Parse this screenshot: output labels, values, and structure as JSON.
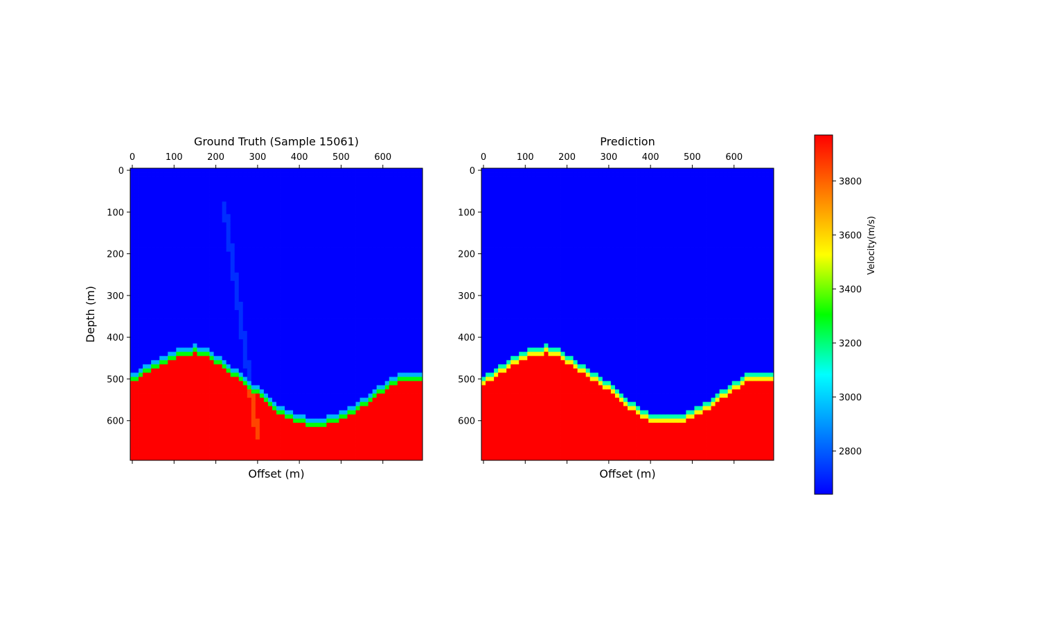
{
  "chart_data": [
    {
      "type": "heatmap",
      "title": "Ground Truth (Sample 15061)",
      "xlabel": "Offset (m)",
      "ylabel": "Depth (m)",
      "x_ticks": [
        0,
        100,
        200,
        300,
        400,
        500,
        600
      ],
      "y_ticks": [
        0,
        100,
        200,
        300,
        400,
        500,
        600
      ],
      "xlim": [
        -5,
        695
      ],
      "ylim": [
        695,
        -5
      ],
      "x_tick_position": "top",
      "grid_size": 70,
      "cell_size_m": 10,
      "background_velocity": 2640,
      "basement_velocity": 3970,
      "interface_depth_profile": {
        "offsets": [
          0,
          30,
          60,
          90,
          120,
          150,
          180,
          210,
          240,
          270,
          300,
          330,
          360,
          390,
          420,
          450,
          480,
          510,
          540,
          570,
          600,
          630,
          660,
          690
        ],
        "depths": [
          500,
          480,
          462,
          445,
          432,
          430,
          438,
          458,
          482,
          505,
          530,
          555,
          578,
          595,
          602,
          602,
          598,
          585,
          565,
          543,
          523,
          502,
          495,
          495
        ]
      },
      "transition_velocity": [
        2950,
        3300
      ],
      "anomaly": {
        "offset_range": [
          220,
          300
        ],
        "depth_range": [
          80,
          640
        ],
        "velocity": 2720
      }
    },
    {
      "type": "heatmap",
      "title": "Prediction",
      "xlabel": "Offset (m)",
      "ylabel": "",
      "x_ticks": [
        0,
        100,
        200,
        300,
        400,
        500,
        600
      ],
      "y_ticks": [
        0,
        100,
        200,
        300,
        400,
        500,
        600
      ],
      "xlim": [
        -5,
        695
      ],
      "ylim": [
        695,
        -5
      ],
      "x_tick_position": "top",
      "grid_size": 70,
      "cell_size_m": 10,
      "background_velocity": 2640,
      "basement_velocity": 3970,
      "interface_depth_profile": {
        "offsets": [
          0,
          30,
          60,
          90,
          120,
          150,
          180,
          210,
          240,
          270,
          300,
          330,
          360,
          390,
          420,
          450,
          480,
          510,
          540,
          570,
          600,
          630,
          660,
          690
        ],
        "depths": [
          505,
          485,
          465,
          447,
          433,
          430,
          438,
          458,
          480,
          500,
          520,
          545,
          570,
          590,
          600,
          600,
          595,
          580,
          562,
          540,
          518,
          498,
          492,
          492
        ]
      },
      "transition_velocity": [
        3150,
        3550
      ]
    }
  ],
  "colorbar": {
    "label": "Velocity(m/s)",
    "min": 2640,
    "max": 3970,
    "ticks": [
      2800,
      3000,
      3200,
      3400,
      3600,
      3800
    ],
    "colormap": [
      "#0000ff",
      "#0080ff",
      "#00ffff",
      "#00ff00",
      "#ffff00",
      "#ff8000",
      "#ff0000"
    ]
  }
}
